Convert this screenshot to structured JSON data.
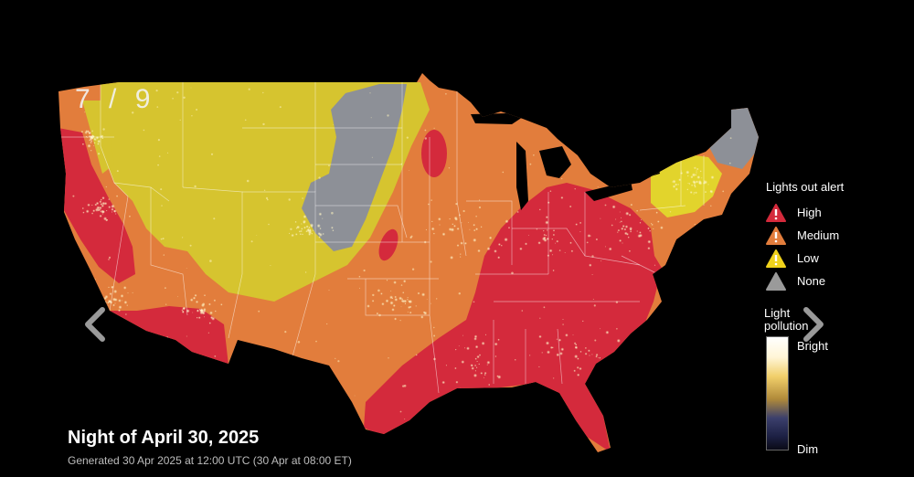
{
  "slide_counter": "7 / 9",
  "map": {
    "region": "Contiguous United States",
    "colors": {
      "high": "#d42a3c",
      "medium": "#e27d3c",
      "low": "#d6c42f",
      "none": "#8d9097",
      "borders": "#ffffff"
    }
  },
  "legend": {
    "alert_title": "Lights out alert",
    "levels": [
      {
        "label": "High",
        "color": "#d42a3c",
        "icon": "warning-triangle-icon"
      },
      {
        "label": "Medium",
        "color": "#e27d3c",
        "icon": "warning-triangle-icon"
      },
      {
        "label": "Low",
        "color": "#f0d21b",
        "icon": "warning-triangle-icon"
      },
      {
        "label": "None",
        "color": "#9a9a9a",
        "icon": "triangle-icon"
      }
    ],
    "light_pollution_title": "Light pollution",
    "bright_label": "Bright",
    "dim_label": "Dim"
  },
  "title": "Night of April 30, 2025",
  "subtitle": "Generated 30 Apr 2025 at 12:00 UTC (30 Apr at 08:00 ET)",
  "navigation": {
    "prev_icon": "chevron-left-icon",
    "next_icon": "chevron-right-icon"
  }
}
